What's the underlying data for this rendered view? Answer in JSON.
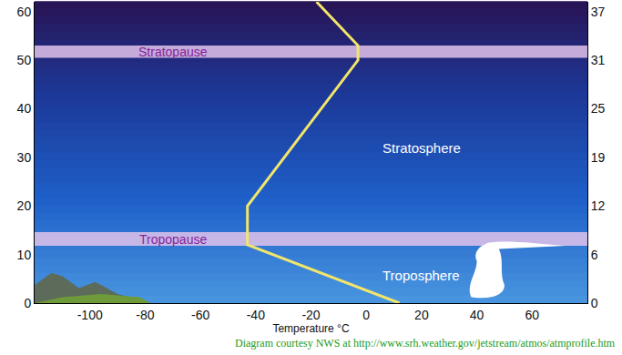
{
  "chart_data": {
    "type": "line",
    "x_label": "Temperature °C",
    "x": [
      12,
      -43,
      -43,
      -3,
      -3,
      -18
    ],
    "values": [
      0,
      12,
      20,
      50,
      53,
      62
    ],
    "color": "#f2e56b",
    "xlim": [
      -120,
      80
    ],
    "xticks": [
      -100,
      -80,
      -60,
      -40,
      -20,
      0,
      20,
      40,
      60
    ],
    "ylim": [
      0,
      62
    ],
    "yticks": [
      0,
      10,
      20,
      30,
      40,
      50,
      60
    ],
    "y2lim": [
      0,
      38.53
    ],
    "y2ticks": [
      {
        "value": 0,
        "label": "0"
      },
      {
        "value": 6.21,
        "label": "6"
      },
      {
        "value": 12.43,
        "label": "12"
      },
      {
        "value": 18.64,
        "label": "19"
      },
      {
        "value": 24.85,
        "label": "25"
      },
      {
        "value": 31.07,
        "label": "31"
      },
      {
        "value": 37.28,
        "label": "37"
      }
    ],
    "grid": false,
    "bands": [
      {
        "label": "Stratopause",
        "y0": 50.5,
        "y1": 53,
        "label_x": -70,
        "label_y": 51.7
      },
      {
        "label": "Tropopause",
        "y0": 11.8,
        "y1": 14.6,
        "label_x": -70,
        "label_y": 13.2
      }
    ],
    "region_labels": [
      {
        "text": "Stratosphere",
        "x": 20,
        "y": 32
      },
      {
        "text": "Troposphere",
        "x": 20,
        "y": 5.8
      }
    ],
    "credit": "Diagram courtesy NWS at http://www.srh.weather.gov/jetstream/atmos/atmprofile.htm"
  }
}
